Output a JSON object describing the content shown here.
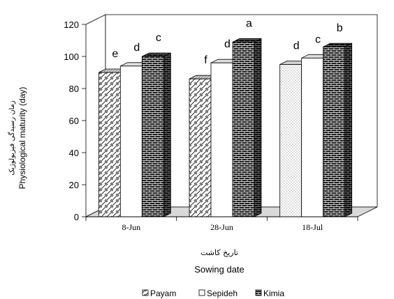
{
  "chart_data": {
    "type": "bar",
    "categories": [
      "8-Jun",
      "28-Jun",
      "18-Jul"
    ],
    "series": [
      {
        "name": "Payam",
        "values": [
          90,
          86,
          95
        ],
        "letters": [
          "e",
          "f",
          "d"
        ]
      },
      {
        "name": "Sepideh",
        "values": [
          94,
          96,
          99
        ],
        "letters": [
          "d",
          "d",
          "c"
        ]
      },
      {
        "name": "Kimia",
        "values": [
          100,
          109,
          106
        ],
        "letters": [
          "c",
          "a",
          "b"
        ]
      }
    ],
    "xlabel": "Sowing date",
    "xlabel_fa": "تاریخ کاشت",
    "ylabel": "Physiological maturity (day)",
    "ylabel_fa": "زمان رسیدگی فیزیولوژیک",
    "ylim": [
      0,
      120
    ],
    "yticks": [
      0,
      20,
      40,
      60,
      80,
      100,
      120
    ],
    "legend_position": "bottom",
    "grid": false,
    "style": "3d-clustered-column",
    "colors": {
      "face": "#ffffff",
      "stroke": "#000000",
      "floor": "#d9d9d9"
    },
    "patterns": [
      "diagonal-hatch",
      "plain",
      "brick"
    ]
  }
}
